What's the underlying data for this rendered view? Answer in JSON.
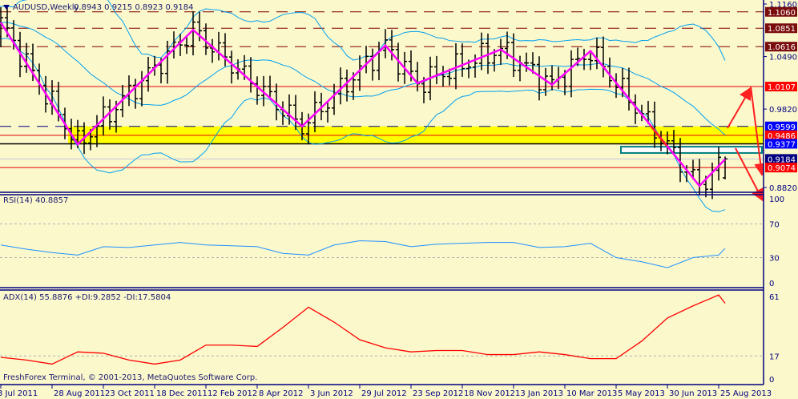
{
  "header": {
    "symbol_title": "AUDUSD,Weekly",
    "ohlc": "0.8943 0.9215 0.8923 0.9184",
    "menu_icon": "triangle-down-icon"
  },
  "footer": {
    "copyright": "FreshForex Terminal, © 2001-2013, MetaQuotes Software Corp."
  },
  "price_axis": {
    "ticks": [
      "1.1160",
      "1.0490",
      "0.9820",
      "0.8820"
    ]
  },
  "levels": [
    {
      "price": "1.1060",
      "style": "dashed",
      "color": "#800000",
      "badge_color": "#7a0c0c"
    },
    {
      "price": "1.0851",
      "style": "dashed",
      "color": "#800000",
      "badge_color": "#7a0c0c"
    },
    {
      "price": "1.0616",
      "style": "dashed",
      "color": "#800000",
      "badge_color": "#7a0c0c"
    },
    {
      "price": "1.0107",
      "style": "solid",
      "color": "#e00000",
      "badge_color": "#ff0000"
    },
    {
      "price": "0.9599",
      "style": "dashed",
      "color": "#000080",
      "badge_color": "#0000ff"
    },
    {
      "price": "0.9486",
      "style": "solid",
      "color": "#e00000",
      "badge_color": "#ff0000"
    },
    {
      "price": "0.9377",
      "style": "solid",
      "color": "#000000",
      "badge_color": "#0000ff"
    },
    {
      "price": "0.9184",
      "style": "current",
      "color": "#c8c8d8",
      "badge_color": "#000080"
    },
    {
      "price": "0.9074",
      "style": "solid",
      "color": "#e00000",
      "badge_color": "#ff0000"
    }
  ],
  "support_zone": {
    "from": 0.9377,
    "to": 0.9599,
    "color": "#ffff00"
  },
  "target_box": {
    "from": 0.926,
    "to": 0.934,
    "color": "#008080"
  },
  "colors": {
    "zigzag": "#ff00ff",
    "bands": "#00a0f0",
    "rsi": "#1e90ff",
    "adx": "#ff0000",
    "arrows": "#ff2020",
    "background": "#fbf8cc",
    "axis": "#000080"
  },
  "date_axis": {
    "labels": [
      "3 Jul 2011",
      "28 Aug 2011",
      "23 Oct 2011",
      "18 Dec 2011",
      "12 Feb 2012",
      "8 Apr 2012",
      "3 Jun 2012",
      "29 Jul 2012",
      "23 Sep 2012",
      "18 Nov 2012",
      "13 Jan 2013",
      "10 Mar 2013",
      "5 May 2013",
      "30 Jun 2013",
      "25 Aug 2013"
    ]
  },
  "rsi": {
    "title": "RSI(14) 40.8857",
    "levels": [
      "100",
      "70",
      "30",
      "0"
    ]
  },
  "adx": {
    "title": "ADX(14) 55.8876 +DI:9.2852 -DI:17.5804",
    "levels": [
      "61",
      "17",
      "0"
    ]
  },
  "chart_data": [
    {
      "type": "ohlc",
      "title": "AUDUSD,Weekly",
      "ylim": [
        0.878,
        1.121
      ],
      "last_bar": {
        "open": 0.8943,
        "high": 0.9215,
        "low": 0.8923,
        "close": 0.9184
      },
      "zigzag": [
        {
          "date": "2011-07-03",
          "price": 1.0925
        },
        {
          "date": "2011-09-25",
          "price": 0.937
        },
        {
          "date": "2012-01-29",
          "price": 1.083
        },
        {
          "date": "2012-05-27",
          "price": 0.96
        },
        {
          "date": "2012-08-26",
          "price": 1.063
        },
        {
          "date": "2012-09-30",
          "price": 1.015
        },
        {
          "date": "2012-12-30",
          "price": 1.058
        },
        {
          "date": "2013-02-24",
          "price": 1.013
        },
        {
          "date": "2013-04-07",
          "price": 1.056
        },
        {
          "date": "2013-08-04",
          "price": 0.884
        },
        {
          "date": "2013-09-01",
          "price": 0.918
        }
      ]
    },
    {
      "type": "line",
      "title": "RSI(14) 40.8857",
      "ylim": [
        0,
        100
      ],
      "dates": [
        "2011-07-03",
        "2011-07-31",
        "2011-08-28",
        "2011-09-25",
        "2011-10-23",
        "2011-11-20",
        "2011-12-18",
        "2012-01-15",
        "2012-02-12",
        "2012-03-11",
        "2012-04-08",
        "2012-05-06",
        "2012-06-03",
        "2012-07-01",
        "2012-07-29",
        "2012-08-26",
        "2012-09-23",
        "2012-10-21",
        "2012-11-18",
        "2012-12-16",
        "2013-01-13",
        "2013-02-10",
        "2013-03-10",
        "2013-04-07",
        "2013-05-05",
        "2013-06-02",
        "2013-06-30",
        "2013-07-28",
        "2013-08-25",
        "2013-09-01"
      ],
      "values": [
        45,
        40,
        36,
        33,
        43,
        42,
        45,
        48,
        45,
        44,
        43,
        35,
        33,
        45,
        50,
        49,
        43,
        46,
        47,
        48,
        48,
        42,
        43,
        47,
        30,
        25,
        18,
        30,
        33,
        40.9
      ]
    },
    {
      "type": "line",
      "title": "ADX(14) 55.8876",
      "ylim": [
        0,
        61
      ],
      "dates": [
        "2011-07-03",
        "2011-07-31",
        "2011-08-28",
        "2011-09-25",
        "2011-10-23",
        "2011-11-20",
        "2011-12-18",
        "2012-01-15",
        "2012-02-12",
        "2012-03-11",
        "2012-04-08",
        "2012-05-06",
        "2012-06-03",
        "2012-07-01",
        "2012-07-29",
        "2012-08-26",
        "2012-09-23",
        "2012-10-21",
        "2012-11-18",
        "2012-12-16",
        "2013-01-13",
        "2013-02-10",
        "2013-03-10",
        "2013-04-07",
        "2013-05-05",
        "2013-06-02",
        "2013-06-30",
        "2013-07-28",
        "2013-08-25",
        "2013-09-01"
      ],
      "values": [
        16,
        14,
        11,
        20,
        19,
        14,
        11,
        14,
        25,
        25,
        24,
        38,
        53,
        42,
        29,
        23,
        20,
        21,
        21,
        18,
        18,
        20,
        18,
        15,
        15,
        28,
        45,
        54,
        62,
        55.9
      ]
    }
  ]
}
